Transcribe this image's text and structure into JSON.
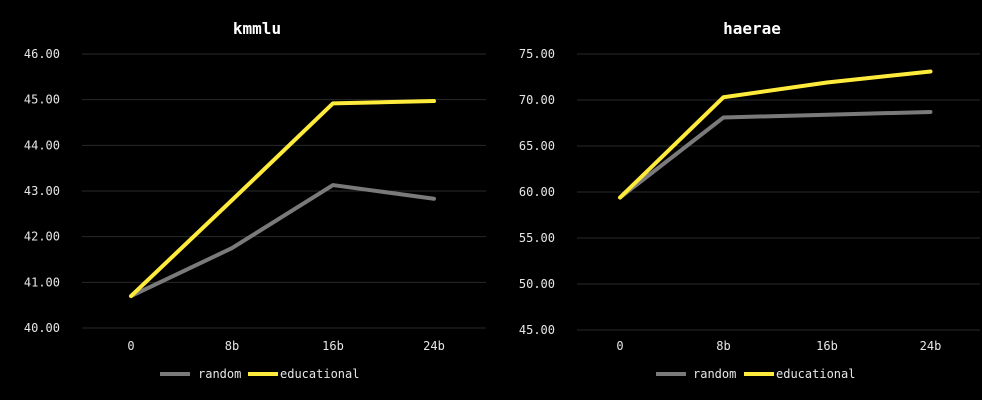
{
  "colors": {
    "background": "#000000",
    "grid": "#2a2a2a",
    "random": "#7a7a7a",
    "educational": "#ffeb3b",
    "text": "#e6e6e6"
  },
  "chart_data": [
    {
      "type": "line",
      "title": "kmmlu",
      "xlabel": "",
      "ylabel": "",
      "categories": [
        "0",
        "8b",
        "16b",
        "24b"
      ],
      "ylim": [
        40,
        46
      ],
      "yticks": [
        "40.00",
        "41.00",
        "42.00",
        "43.00",
        "44.00",
        "45.00",
        "46.00"
      ],
      "grid": true,
      "legend_position": "bottom",
      "series": [
        {
          "name": "random",
          "color": "#7a7a7a",
          "values": [
            40.7,
            41.75,
            43.13,
            42.83
          ]
        },
        {
          "name": "educational",
          "color": "#ffeb3b",
          "values": [
            40.7,
            42.8,
            44.92,
            44.97
          ]
        }
      ]
    },
    {
      "type": "line",
      "title": "haerae",
      "xlabel": "",
      "ylabel": "",
      "categories": [
        "0",
        "8b",
        "16b",
        "24b"
      ],
      "ylim": [
        45,
        75
      ],
      "yticks": [
        "45.00",
        "50.00",
        "55.00",
        "60.00",
        "65.00",
        "70.00",
        "75.00"
      ],
      "grid": true,
      "legend_position": "bottom",
      "series": [
        {
          "name": "random",
          "color": "#7a7a7a",
          "values": [
            59.4,
            68.1,
            68.4,
            68.7
          ]
        },
        {
          "name": "educational",
          "color": "#ffeb3b",
          "values": [
            59.4,
            70.3,
            71.9,
            73.1
          ]
        }
      ]
    }
  ]
}
